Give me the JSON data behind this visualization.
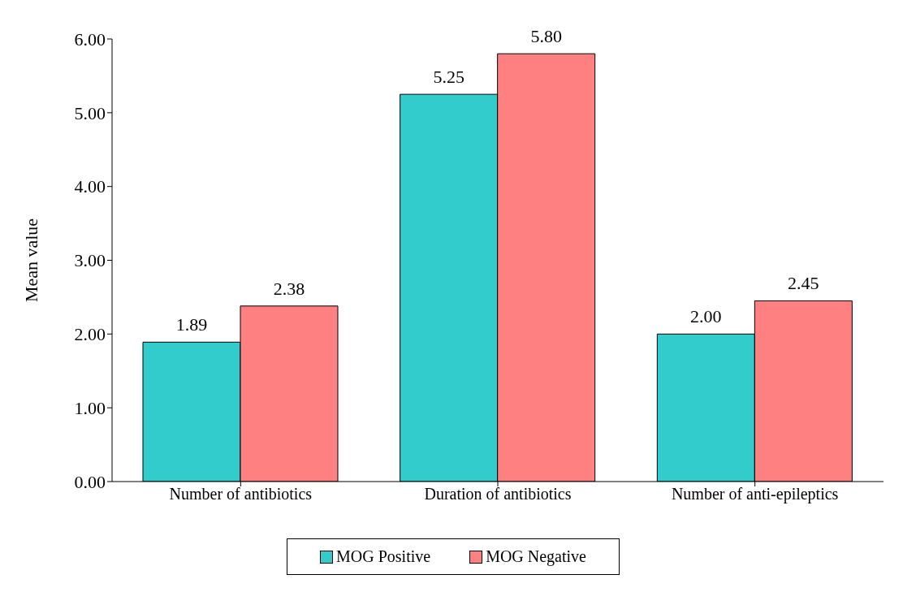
{
  "chart_data": {
    "type": "bar",
    "ylabel": "Mean value",
    "categories": [
      "Number of antibiotics",
      "Duration of antibiotics",
      "Number of anti-epileptics"
    ],
    "series": [
      {
        "name": "MOG Positive",
        "color": "#33cccc",
        "values": [
          1.89,
          5.25,
          2.0
        ],
        "value_labels": [
          "1.89",
          "5.25",
          "2.00"
        ]
      },
      {
        "name": "MOG Negative",
        "color": "#ff8080",
        "values": [
          2.38,
          5.8,
          2.45
        ],
        "value_labels": [
          "2.38",
          "5.80",
          "2.45"
        ]
      }
    ],
    "ylim": [
      0,
      6
    ],
    "yticks": [
      {
        "value": 0,
        "label": "0.00"
      },
      {
        "value": 1,
        "label": "1.00"
      },
      {
        "value": 2,
        "label": "2.00"
      },
      {
        "value": 3,
        "label": "3.00"
      },
      {
        "value": 4,
        "label": "4.00"
      },
      {
        "value": 5,
        "label": "5.00"
      },
      {
        "value": 6,
        "label": "6.00"
      }
    ],
    "grid": false,
    "legend": "bottom"
  }
}
